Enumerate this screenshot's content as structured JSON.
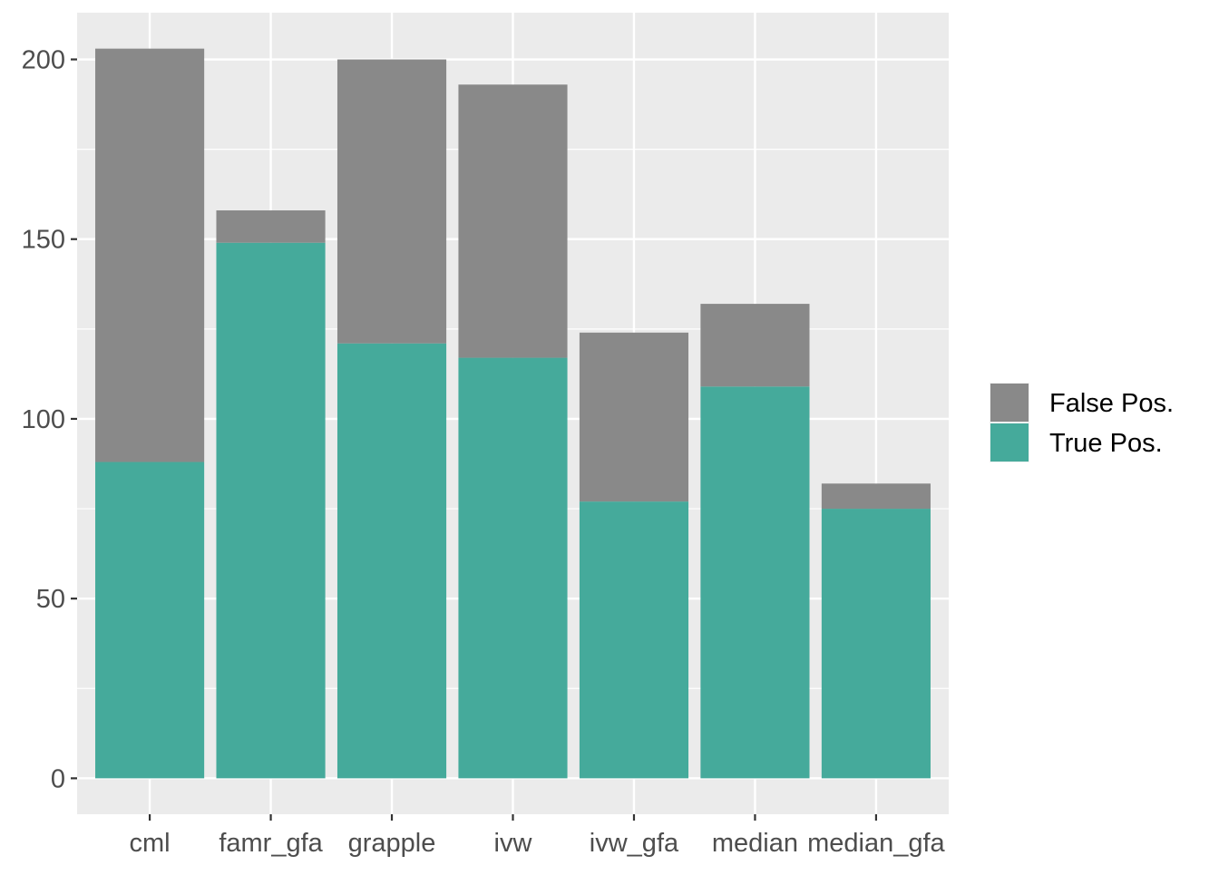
{
  "chart_data": {
    "type": "bar",
    "stacked": true,
    "categories": [
      "cml",
      "famr_gfa",
      "grapple",
      "ivw",
      "ivw_gfa",
      "median",
      "median_gfa"
    ],
    "series": [
      {
        "name": "True Pos.",
        "color": "#45AA9B",
        "values": [
          88,
          149,
          121,
          117,
          77,
          109,
          75
        ]
      },
      {
        "name": "False Pos.",
        "color": "#898989",
        "values": [
          115,
          9,
          79,
          76,
          47,
          23,
          7
        ]
      }
    ],
    "title": "",
    "xlabel": "",
    "ylabel": "",
    "ylim": [
      -10,
      213
    ],
    "yticks": [
      0,
      50,
      100,
      150,
      200
    ],
    "ytick_labels": [
      "0",
      "50",
      "100",
      "150",
      "200"
    ],
    "grid": true,
    "legend": {
      "position": "right",
      "order": [
        "False Pos.",
        "True Pos."
      ]
    },
    "panel_background": "#EBEBEB",
    "grid_color": "#FFFFFF"
  }
}
